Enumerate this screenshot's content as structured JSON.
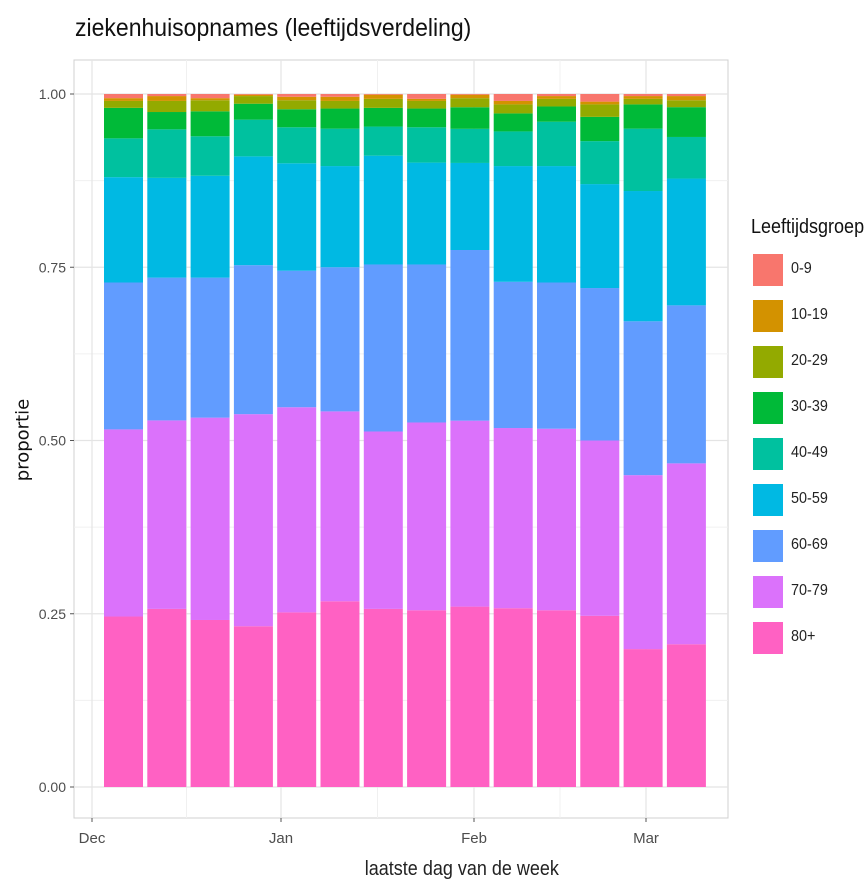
{
  "title": "ziekenhuisopnames (leeftijdsverdeling)",
  "xlabel": "laatste dag van de week",
  "ylabel": "proportie",
  "legend": {
    "title": "Leeftijdsgroep",
    "placement": "right",
    "items": [
      {
        "label": "0-9",
        "color": "#F8766D"
      },
      {
        "label": "10-19",
        "color": "#D39200"
      },
      {
        "label": "20-29",
        "color": "#93AA00"
      },
      {
        "label": "30-39",
        "color": "#00BA38"
      },
      {
        "label": "40-49",
        "color": "#00C19F"
      },
      {
        "label": "50-59",
        "color": "#00B9E3"
      },
      {
        "label": "60-69",
        "color": "#619CFF"
      },
      {
        "label": "70-79",
        "color": "#DB72FB"
      },
      {
        "label": "80+",
        "color": "#FF61C3"
      }
    ]
  },
  "chart_data": {
    "type": "bar",
    "stacked": true,
    "title": "ziekenhuisopnames (leeftijdsverdeling)",
    "xlabel": "laatste dag van de week",
    "ylabel": "proportie",
    "ylim": [
      0,
      1
    ],
    "grid": true,
    "x_ticks": [
      "Dec",
      "Jan",
      "Feb",
      "Mar"
    ],
    "y_ticks": [
      "0.00",
      "0.25",
      "0.50",
      "0.75",
      "1.00"
    ],
    "series_order_bottom_to_top": [
      "80+",
      "70-79",
      "60-69",
      "50-59",
      "40-49",
      "30-39",
      "20-29",
      "10-19",
      "0-9"
    ],
    "series": [
      {
        "name": "80+",
        "values": [
          0.246,
          0.257,
          0.241,
          0.232,
          0.252,
          0.268,
          0.257,
          0.255,
          0.259,
          0.258,
          0.255,
          0.247,
          0.199,
          0.206
        ]
      },
      {
        "name": "70-79",
        "values": [
          0.27,
          0.272,
          0.292,
          0.306,
          0.296,
          0.274,
          0.256,
          0.271,
          0.267,
          0.26,
          0.262,
          0.253,
          0.251,
          0.261
        ]
      },
      {
        "name": "60-69",
        "values": [
          0.212,
          0.206,
          0.202,
          0.215,
          0.197,
          0.208,
          0.241,
          0.228,
          0.245,
          0.211,
          0.211,
          0.22,
          0.222,
          0.228
        ]
      },
      {
        "name": "50-59",
        "values": [
          0.152,
          0.144,
          0.147,
          0.157,
          0.155,
          0.146,
          0.157,
          0.147,
          0.125,
          0.167,
          0.168,
          0.15,
          0.188,
          0.183
        ]
      },
      {
        "name": "40-49",
        "values": [
          0.056,
          0.07,
          0.057,
          0.053,
          0.052,
          0.054,
          0.042,
          0.051,
          0.049,
          0.05,
          0.064,
          0.062,
          0.09,
          0.06
        ]
      },
      {
        "name": "30-39",
        "values": [
          0.044,
          0.025,
          0.036,
          0.023,
          0.026,
          0.029,
          0.027,
          0.027,
          0.031,
          0.026,
          0.022,
          0.035,
          0.035,
          0.043
        ]
      },
      {
        "name": "20-29",
        "values": [
          0.01,
          0.016,
          0.016,
          0.011,
          0.013,
          0.011,
          0.013,
          0.011,
          0.013,
          0.013,
          0.011,
          0.018,
          0.008,
          0.01
        ]
      },
      {
        "name": "10-19",
        "values": [
          0.004,
          0.007,
          0.003,
          0.002,
          0.005,
          0.006,
          0.006,
          0.003,
          0.005,
          0.005,
          0.004,
          0.004,
          0.004,
          0.006
        ]
      },
      {
        "name": "0-9",
        "values": [
          0.006,
          0.003,
          0.006,
          0.001,
          0.004,
          0.004,
          0.001,
          0.007,
          0.001,
          0.01,
          0.003,
          0.011,
          0.003,
          0.003
        ]
      }
    ]
  }
}
